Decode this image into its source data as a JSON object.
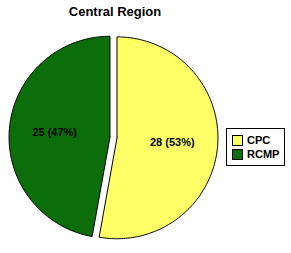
{
  "chart_data": {
    "type": "pie",
    "title": "Central Region",
    "categories": [
      "CPC",
      "RCMP"
    ],
    "values": [
      28,
      25
    ],
    "value_labels": [
      "28 (53%)",
      "25 (47%)"
    ],
    "colors": [
      "#ffff66",
      "#0b6e0b"
    ],
    "legend": "right",
    "data_labels": true
  }
}
